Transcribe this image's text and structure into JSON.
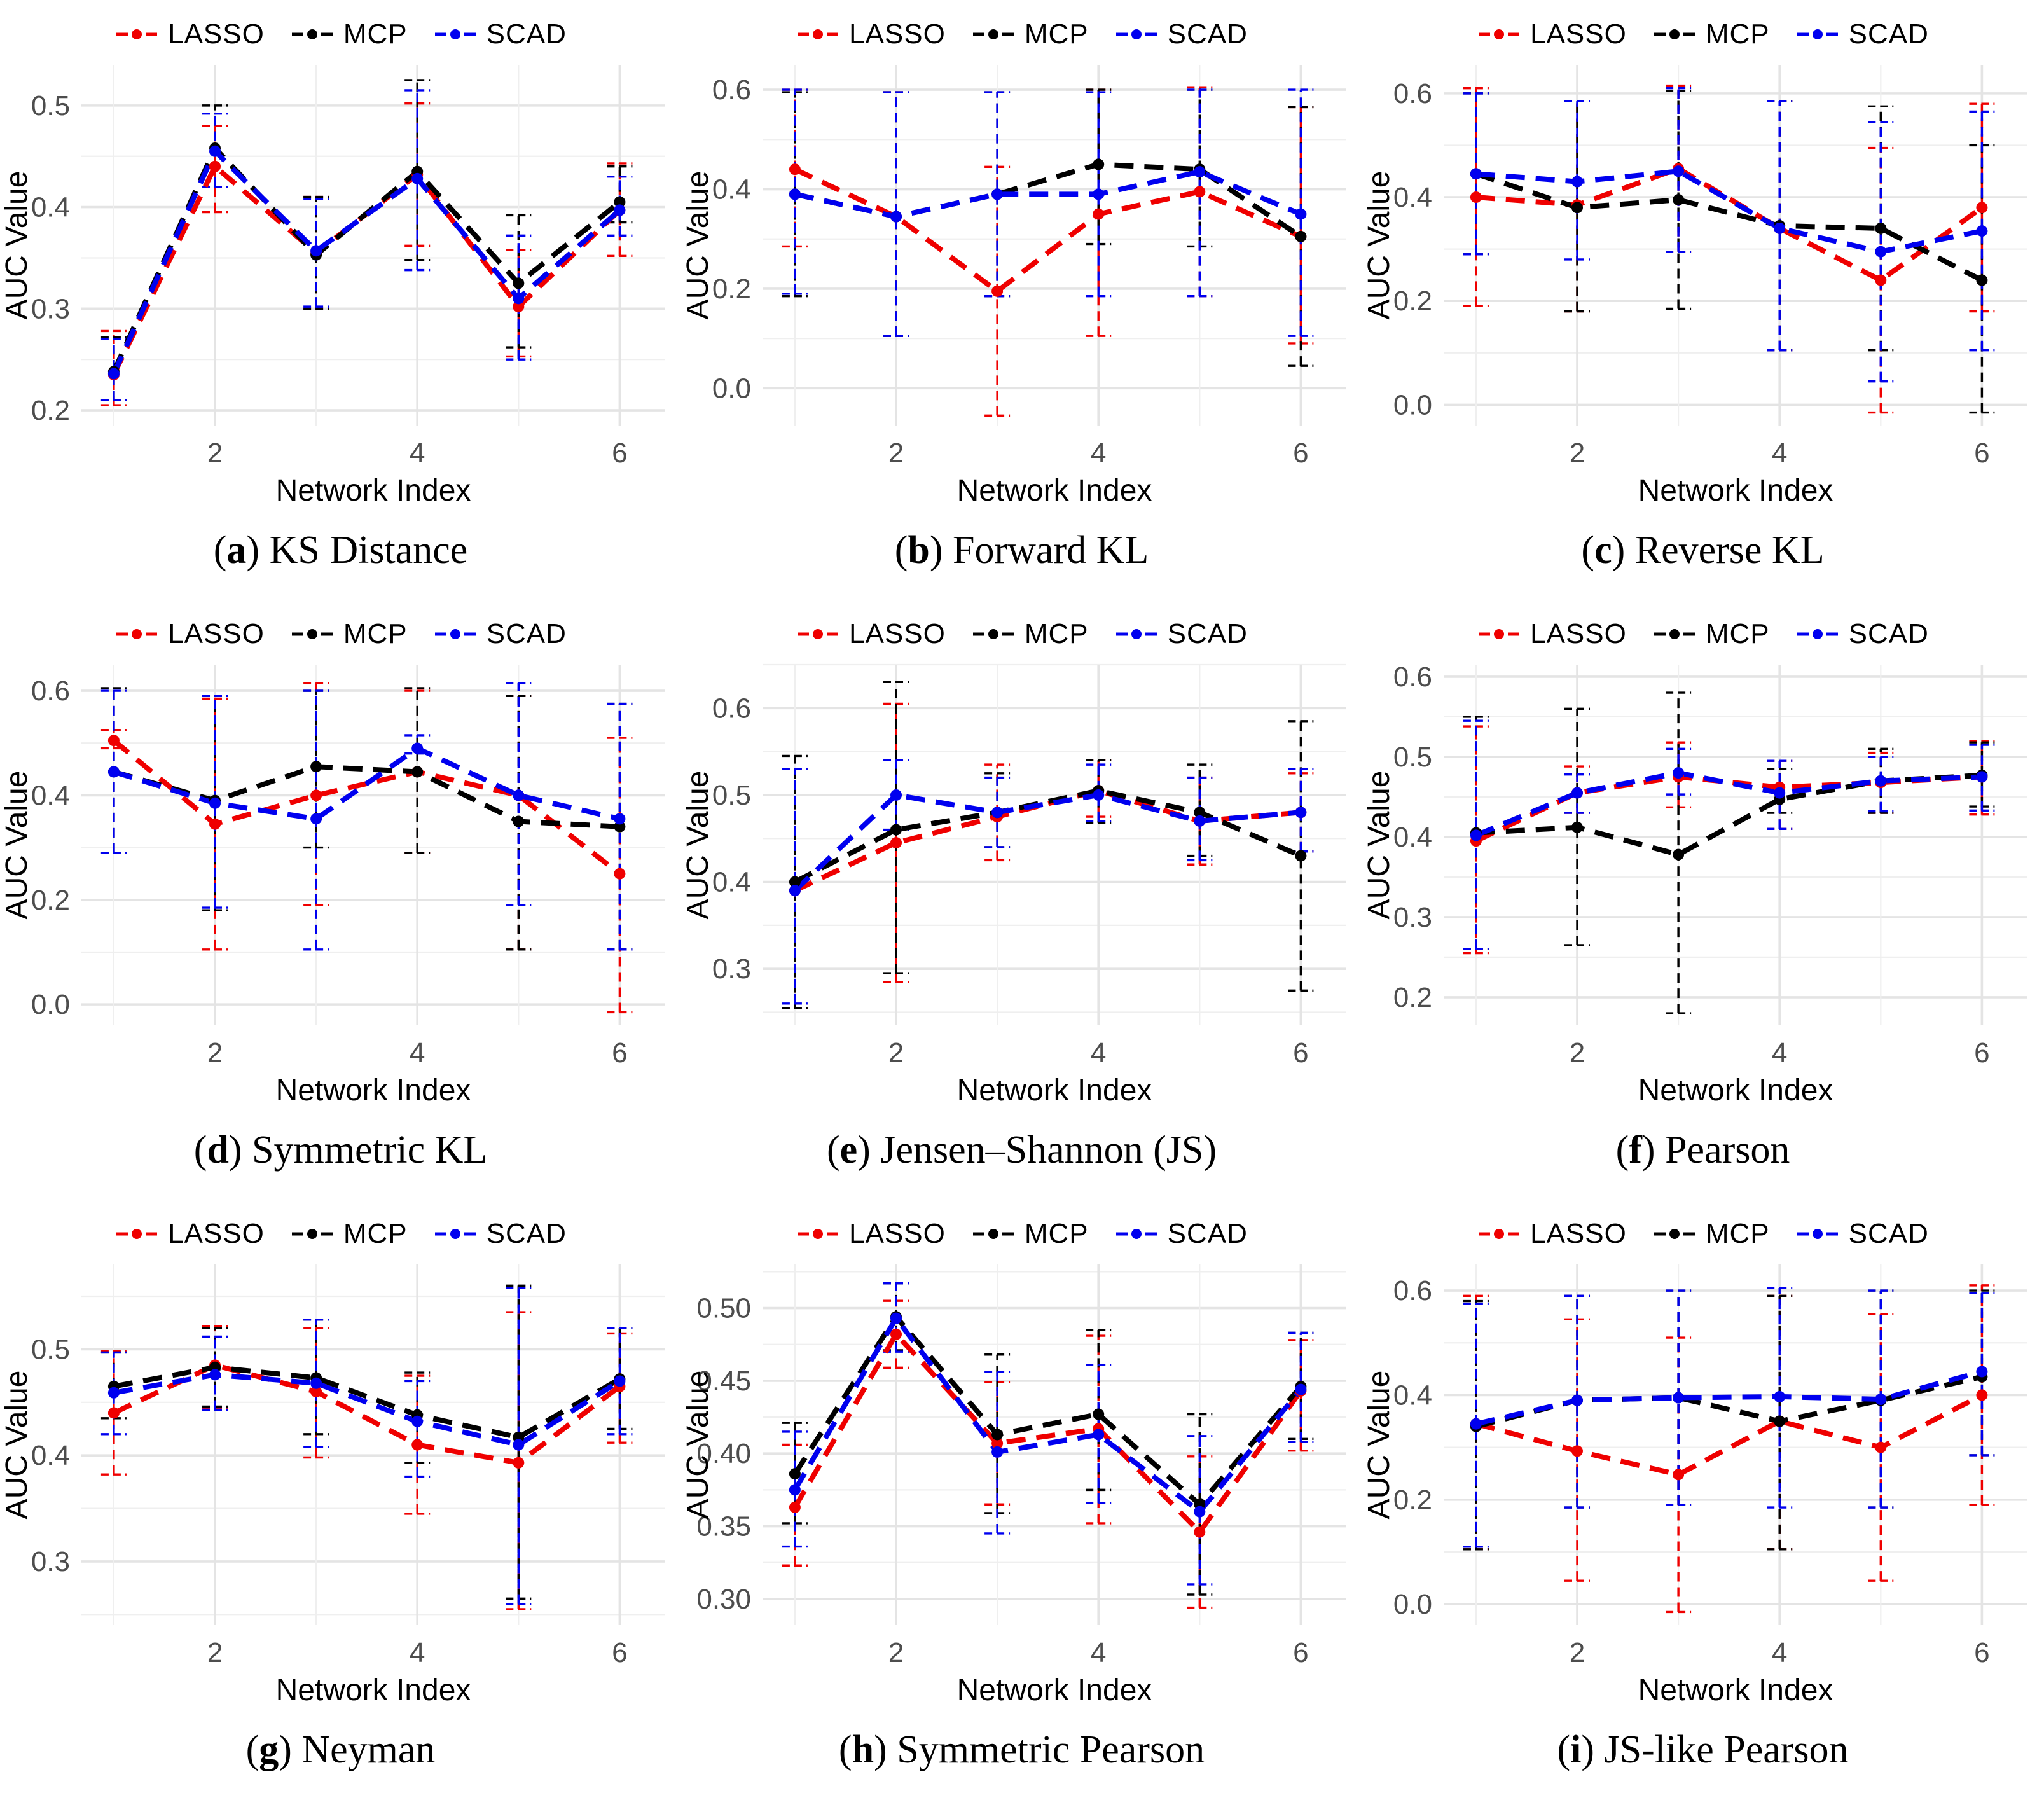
{
  "figure": {
    "rows": 3,
    "columns": 3,
    "background": "#ffffff"
  },
  "legend": {
    "items": [
      {
        "name": "lasso",
        "label": "LASSO",
        "color": "#EF0000"
      },
      {
        "name": "mcp",
        "label": "MCP",
        "color": "#000000"
      },
      {
        "name": "scad",
        "label": "SCAD",
        "color": "#0000EF"
      }
    ]
  },
  "axes": {
    "x_label": "Network Index",
    "y_label": "AUC Value",
    "x_points": [
      1,
      2,
      3,
      4,
      5,
      6
    ],
    "x_major_ticks": [
      {
        "v": 2,
        "label": "2"
      },
      {
        "v": 4,
        "label": "4"
      },
      {
        "v": 6,
        "label": "6"
      }
    ],
    "x_minor_ticks": [
      1,
      3,
      5
    ],
    "xlim": [
      0.68,
      6.45
    ],
    "tick_color": "#4D4D4D",
    "grid_major_color": "#E4E4E4",
    "grid_minor_color": "#EFEFEF"
  },
  "chart_data": [
    {
      "type": "line",
      "caption_letter": "a",
      "caption_label": "KS Distance",
      "ylim": [
        0.185,
        0.54
      ],
      "yticks": [
        {
          "v": 0.2,
          "label": "0.2"
        },
        {
          "v": 0.3,
          "label": "0.3"
        },
        {
          "v": 0.4,
          "label": "0.4"
        },
        {
          "v": 0.5,
          "label": "0.5"
        }
      ],
      "series": [
        {
          "name": "LASSO",
          "values": [
            0.235,
            0.44,
            0.355,
            0.432,
            0.302,
            0.397
          ],
          "err_lo": [
            0.205,
            0.395,
            0.3,
            0.362,
            0.253,
            0.352
          ],
          "err_hi": [
            0.278,
            0.48,
            0.41,
            0.502,
            0.358,
            0.443
          ]
        },
        {
          "name": "MCP",
          "values": [
            0.238,
            0.458,
            0.353,
            0.435,
            0.325,
            0.405
          ],
          "err_lo": [
            0.21,
            0.42,
            0.3,
            0.348,
            0.262,
            0.385
          ],
          "err_hi": [
            0.272,
            0.5,
            0.41,
            0.525,
            0.392,
            0.44
          ]
        },
        {
          "name": "SCAD",
          "values": [
            0.236,
            0.455,
            0.357,
            0.428,
            0.31,
            0.397
          ],
          "err_lo": [
            0.21,
            0.42,
            0.302,
            0.338,
            0.25,
            0.372
          ],
          "err_hi": [
            0.27,
            0.492,
            0.408,
            0.515,
            0.372,
            0.43
          ]
        }
      ]
    },
    {
      "type": "line",
      "caption_letter": "b",
      "caption_label": "Forward KL",
      "ylim": [
        -0.075,
        0.65
      ],
      "yticks": [
        {
          "v": 0.0,
          "label": "0.0"
        },
        {
          "v": 0.2,
          "label": "0.2"
        },
        {
          "v": 0.4,
          "label": "0.4"
        },
        {
          "v": 0.6,
          "label": "0.6"
        }
      ],
      "series": [
        {
          "name": "LASSO",
          "values": [
            0.44,
            0.345,
            0.195,
            0.35,
            0.395,
            0.305
          ],
          "err_lo": [
            0.285,
            0.105,
            -0.055,
            0.105,
            0.185,
            0.09
          ],
          "err_hi": [
            0.6,
            0.595,
            0.445,
            0.6,
            0.605,
            0.565
          ]
        },
        {
          "name": "MCP",
          "values": [
            0.39,
            0.345,
            0.39,
            0.45,
            0.44,
            0.305
          ],
          "err_lo": [
            0.185,
            0.105,
            0.185,
            0.29,
            0.285,
            0.045
          ],
          "err_hi": [
            0.595,
            0.595,
            0.595,
            0.6,
            0.6,
            0.565
          ]
        },
        {
          "name": "SCAD",
          "values": [
            0.39,
            0.345,
            0.39,
            0.39,
            0.435,
            0.35
          ],
          "err_lo": [
            0.19,
            0.105,
            0.185,
            0.185,
            0.185,
            0.105
          ],
          "err_hi": [
            0.6,
            0.595,
            0.595,
            0.595,
            0.6,
            0.6
          ]
        }
      ]
    },
    {
      "type": "line",
      "caption_letter": "c",
      "caption_label": "Reverse KL",
      "ylim": [
        -0.04,
        0.655
      ],
      "yticks": [
        {
          "v": 0.0,
          "label": "0.0"
        },
        {
          "v": 0.2,
          "label": "0.2"
        },
        {
          "v": 0.4,
          "label": "0.4"
        },
        {
          "v": 0.6,
          "label": "0.6"
        }
      ],
      "series": [
        {
          "name": "LASSO",
          "values": [
            0.4,
            0.385,
            0.455,
            0.34,
            0.24,
            0.38
          ],
          "err_lo": [
            0.19,
            0.18,
            0.295,
            0.105,
            -0.015,
            0.18
          ],
          "err_hi": [
            0.61,
            0.585,
            0.615,
            0.585,
            0.495,
            0.58
          ]
        },
        {
          "name": "MCP",
          "values": [
            0.445,
            0.38,
            0.395,
            0.345,
            0.34,
            0.24
          ],
          "err_lo": [
            0.29,
            0.18,
            0.185,
            0.105,
            0.105,
            -0.015
          ],
          "err_hi": [
            0.6,
            0.585,
            0.605,
            0.585,
            0.575,
            0.5
          ]
        },
        {
          "name": "SCAD",
          "values": [
            0.445,
            0.43,
            0.45,
            0.34,
            0.295,
            0.335
          ],
          "err_lo": [
            0.29,
            0.28,
            0.295,
            0.105,
            0.045,
            0.105
          ],
          "err_hi": [
            0.6,
            0.585,
            0.61,
            0.585,
            0.545,
            0.565
          ]
        }
      ]
    },
    {
      "type": "line",
      "caption_letter": "d",
      "caption_label": "Symmetric KL",
      "ylim": [
        -0.04,
        0.65
      ],
      "yticks": [
        {
          "v": 0.0,
          "label": "0.0"
        },
        {
          "v": 0.2,
          "label": "0.2"
        },
        {
          "v": 0.4,
          "label": "0.4"
        },
        {
          "v": 0.6,
          "label": "0.6"
        }
      ],
      "series": [
        {
          "name": "LASSO",
          "values": [
            0.505,
            0.345,
            0.4,
            0.445,
            0.4,
            0.25
          ],
          "err_lo": [
            0.49,
            0.105,
            0.19,
            0.29,
            0.105,
            -0.015
          ],
          "err_hi": [
            0.525,
            0.585,
            0.615,
            0.6,
            0.59,
            0.51
          ]
        },
        {
          "name": "MCP",
          "values": [
            0.445,
            0.39,
            0.455,
            0.445,
            0.35,
            0.34
          ],
          "err_lo": [
            0.29,
            0.18,
            0.3,
            0.29,
            0.105,
            0.105
          ],
          "err_hi": [
            0.605,
            0.59,
            0.6,
            0.605,
            0.59,
            0.575
          ]
        },
        {
          "name": "SCAD",
          "values": [
            0.445,
            0.385,
            0.355,
            0.49,
            0.4,
            0.355
          ],
          "err_lo": [
            0.29,
            0.185,
            0.105,
            0.48,
            0.19,
            0.105
          ],
          "err_hi": [
            0.6,
            0.59,
            0.6,
            0.515,
            0.615,
            0.575
          ]
        }
      ]
    },
    {
      "type": "line",
      "caption_letter": "e",
      "caption_label": "Jensen–Shannon (JS)",
      "ylim": [
        0.235,
        0.65
      ],
      "yticks": [
        {
          "v": 0.3,
          "label": "0.3"
        },
        {
          "v": 0.4,
          "label": "0.4"
        },
        {
          "v": 0.5,
          "label": "0.5"
        },
        {
          "v": 0.6,
          "label": "0.6"
        }
      ],
      "series": [
        {
          "name": "LASSO",
          "values": [
            0.39,
            0.445,
            0.475,
            0.505,
            0.47,
            0.48
          ],
          "err_lo": [
            0.255,
            0.285,
            0.425,
            0.475,
            0.42,
            0.435
          ],
          "err_hi": [
            0.53,
            0.605,
            0.535,
            0.54,
            0.52,
            0.525
          ]
        },
        {
          "name": "MCP",
          "values": [
            0.4,
            0.46,
            0.48,
            0.505,
            0.48,
            0.43
          ],
          "err_lo": [
            0.255,
            0.295,
            0.44,
            0.468,
            0.43,
            0.275
          ],
          "err_hi": [
            0.545,
            0.63,
            0.525,
            0.54,
            0.535,
            0.585
          ]
        },
        {
          "name": "SCAD",
          "values": [
            0.39,
            0.5,
            0.48,
            0.5,
            0.47,
            0.48
          ],
          "err_lo": [
            0.26,
            0.46,
            0.44,
            0.47,
            0.425,
            0.435
          ],
          "err_hi": [
            0.53,
            0.54,
            0.52,
            0.535,
            0.52,
            0.53
          ]
        }
      ]
    },
    {
      "type": "line",
      "caption_letter": "f",
      "caption_label": "Pearson",
      "ylim": [
        0.165,
        0.615
      ],
      "yticks": [
        {
          "v": 0.2,
          "label": "0.2"
        },
        {
          "v": 0.3,
          "label": "0.3"
        },
        {
          "v": 0.4,
          "label": "0.4"
        },
        {
          "v": 0.5,
          "label": "0.5"
        },
        {
          "v": 0.6,
          "label": "0.6"
        }
      ],
      "series": [
        {
          "name": "LASSO",
          "values": [
            0.395,
            0.455,
            0.475,
            0.462,
            0.468,
            0.475
          ],
          "err_lo": [
            0.255,
            0.43,
            0.437,
            0.41,
            0.43,
            0.428
          ],
          "err_hi": [
            0.538,
            0.488,
            0.518,
            0.495,
            0.505,
            0.52
          ]
        },
        {
          "name": "MCP",
          "values": [
            0.405,
            0.412,
            0.378,
            0.447,
            0.47,
            0.477
          ],
          "err_lo": [
            0.26,
            0.265,
            0.18,
            0.43,
            0.43,
            0.438
          ],
          "err_hi": [
            0.55,
            0.56,
            0.58,
            0.485,
            0.51,
            0.518
          ]
        },
        {
          "name": "SCAD",
          "values": [
            0.402,
            0.455,
            0.48,
            0.455,
            0.47,
            0.475
          ],
          "err_lo": [
            0.26,
            0.43,
            0.453,
            0.41,
            0.432,
            0.433
          ],
          "err_hi": [
            0.545,
            0.478,
            0.51,
            0.495,
            0.5,
            0.515
          ]
        }
      ]
    },
    {
      "type": "line",
      "caption_letter": "g",
      "caption_label": "Neyman",
      "ylim": [
        0.24,
        0.58
      ],
      "yticks": [
        {
          "v": 0.3,
          "label": "0.3"
        },
        {
          "v": 0.4,
          "label": "0.4"
        },
        {
          "v": 0.5,
          "label": "0.5"
        }
      ],
      "series": [
        {
          "name": "LASSO",
          "values": [
            0.44,
            0.485,
            0.46,
            0.41,
            0.393,
            0.465
          ],
          "err_lo": [
            0.382,
            0.445,
            0.398,
            0.345,
            0.255,
            0.412
          ],
          "err_hi": [
            0.498,
            0.522,
            0.52,
            0.475,
            0.535,
            0.515
          ]
        },
        {
          "name": "MCP",
          "values": [
            0.465,
            0.483,
            0.473,
            0.438,
            0.417,
            0.472
          ],
          "err_lo": [
            0.435,
            0.446,
            0.42,
            0.393,
            0.265,
            0.425
          ],
          "err_hi": [
            0.497,
            0.52,
            0.528,
            0.478,
            0.56,
            0.52
          ]
        },
        {
          "name": "SCAD",
          "values": [
            0.459,
            0.476,
            0.468,
            0.432,
            0.41,
            0.47
          ],
          "err_lo": [
            0.42,
            0.443,
            0.408,
            0.38,
            0.26,
            0.42
          ],
          "err_hi": [
            0.497,
            0.512,
            0.528,
            0.47,
            0.558,
            0.52
          ]
        }
      ]
    },
    {
      "type": "line",
      "caption_letter": "h",
      "caption_label": "Symmetric Pearson",
      "ylim": [
        0.282,
        0.53
      ],
      "yticks": [
        {
          "v": 0.3,
          "label": "0.30"
        },
        {
          "v": 0.35,
          "label": "0.35"
        },
        {
          "v": 0.4,
          "label": "0.40"
        },
        {
          "v": 0.45,
          "label": "0.45"
        },
        {
          "v": 0.5,
          "label": "0.50"
        }
      ],
      "series": [
        {
          "name": "LASSO",
          "values": [
            0.363,
            0.482,
            0.407,
            0.417,
            0.346,
            0.443
          ],
          "err_lo": [
            0.323,
            0.459,
            0.365,
            0.352,
            0.294,
            0.402
          ],
          "err_hi": [
            0.406,
            0.505,
            0.449,
            0.481,
            0.398,
            0.478
          ]
        },
        {
          "name": "MCP",
          "values": [
            0.386,
            0.494,
            0.413,
            0.427,
            0.365,
            0.446
          ],
          "err_lo": [
            0.352,
            0.471,
            0.359,
            0.375,
            0.303,
            0.41
          ],
          "err_hi": [
            0.421,
            0.517,
            0.468,
            0.485,
            0.427,
            0.483
          ]
        },
        {
          "name": "SCAD",
          "values": [
            0.375,
            0.493,
            0.401,
            0.413,
            0.36,
            0.444
          ],
          "err_lo": [
            0.336,
            0.47,
            0.345,
            0.366,
            0.31,
            0.408
          ],
          "err_hi": [
            0.415,
            0.517,
            0.456,
            0.461,
            0.412,
            0.483
          ]
        }
      ]
    },
    {
      "type": "line",
      "caption_letter": "i",
      "caption_label": "JS-like Pearson",
      "ylim": [
        -0.04,
        0.65
      ],
      "yticks": [
        {
          "v": 0.0,
          "label": "0.0"
        },
        {
          "v": 0.2,
          "label": "0.2"
        },
        {
          "v": 0.4,
          "label": "0.4"
        },
        {
          "v": 0.6,
          "label": "0.6"
        }
      ],
      "series": [
        {
          "name": "LASSO",
          "values": [
            0.345,
            0.293,
            0.248,
            0.35,
            0.3,
            0.4
          ],
          "err_lo": [
            0.105,
            0.045,
            -0.015,
            0.105,
            0.045,
            0.19
          ],
          "err_hi": [
            0.59,
            0.545,
            0.51,
            0.59,
            0.555,
            0.61
          ]
        },
        {
          "name": "MCP",
          "values": [
            0.34,
            0.39,
            0.395,
            0.35,
            0.39,
            0.435
          ],
          "err_lo": [
            0.105,
            0.185,
            0.19,
            0.105,
            0.185,
            0.285
          ],
          "err_hi": [
            0.58,
            0.59,
            0.6,
            0.59,
            0.6,
            0.6
          ]
        },
        {
          "name": "SCAD",
          "values": [
            0.345,
            0.39,
            0.395,
            0.397,
            0.392,
            0.445
          ],
          "err_lo": [
            0.11,
            0.185,
            0.19,
            0.185,
            0.185,
            0.285
          ],
          "err_hi": [
            0.575,
            0.59,
            0.6,
            0.605,
            0.6,
            0.595
          ]
        }
      ]
    }
  ]
}
